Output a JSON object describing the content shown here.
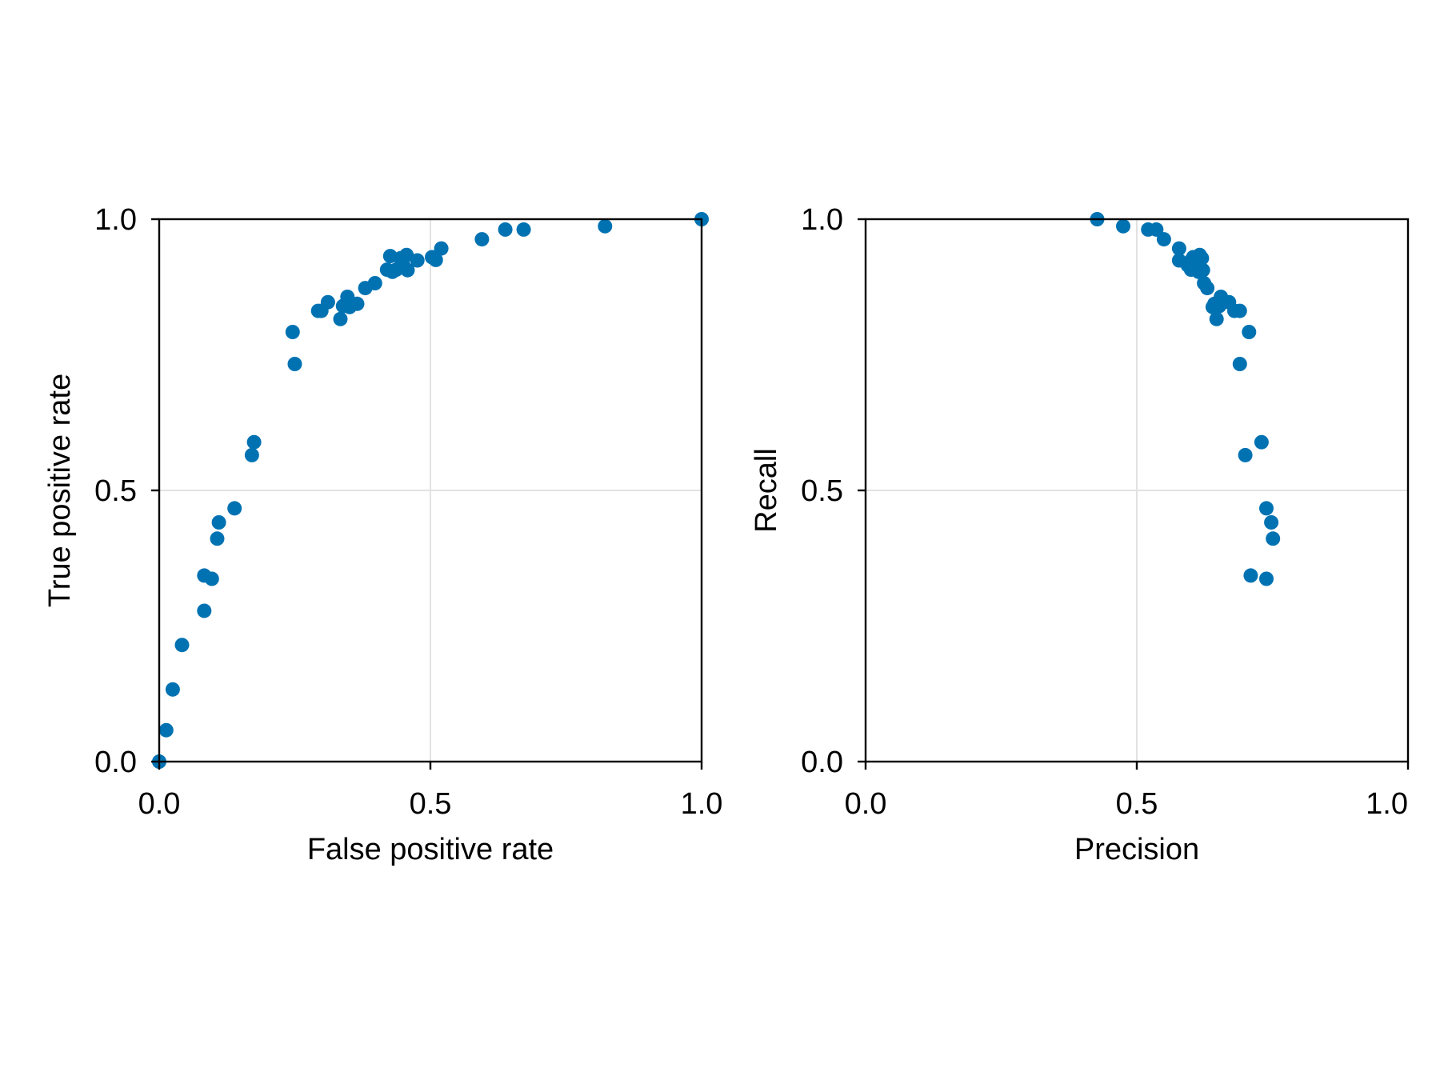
{
  "chart_data": [
    {
      "type": "scatter",
      "title": "",
      "xlabel": "False positive rate",
      "ylabel": "True positive rate",
      "xlim": [
        0,
        1
      ],
      "ylim": [
        0,
        1
      ],
      "xticks": [
        "0.0",
        "0.5",
        "1.0"
      ],
      "yticks": [
        "0.0",
        "0.5",
        "1.0"
      ],
      "grid": true,
      "legend": "none",
      "marker_color": "#0072b2",
      "points": [
        [
          0.0,
          0.0
        ],
        [
          0.013,
          0.058
        ],
        [
          0.025,
          0.133
        ],
        [
          0.042,
          0.215
        ],
        [
          0.083,
          0.278
        ],
        [
          0.083,
          0.343
        ],
        [
          0.097,
          0.337
        ],
        [
          0.107,
          0.411
        ],
        [
          0.11,
          0.441
        ],
        [
          0.139,
          0.467
        ],
        [
          0.171,
          0.565
        ],
        [
          0.175,
          0.589
        ],
        [
          0.246,
          0.792
        ],
        [
          0.25,
          0.733
        ],
        [
          0.293,
          0.831
        ],
        [
          0.299,
          0.831
        ],
        [
          0.311,
          0.847
        ],
        [
          0.334,
          0.816
        ],
        [
          0.339,
          0.84
        ],
        [
          0.347,
          0.857
        ],
        [
          0.351,
          0.838
        ],
        [
          0.365,
          0.844
        ],
        [
          0.38,
          0.873
        ],
        [
          0.398,
          0.882
        ],
        [
          0.42,
          0.907
        ],
        [
          0.426,
          0.932
        ],
        [
          0.43,
          0.903
        ],
        [
          0.437,
          0.907
        ],
        [
          0.445,
          0.928
        ],
        [
          0.45,
          0.915
        ],
        [
          0.456,
          0.934
        ],
        [
          0.458,
          0.906
        ],
        [
          0.476,
          0.924
        ],
        [
          0.503,
          0.93
        ],
        [
          0.51,
          0.925
        ],
        [
          0.52,
          0.946
        ],
        [
          0.595,
          0.963
        ],
        [
          0.638,
          0.981
        ],
        [
          0.672,
          0.981
        ],
        [
          0.822,
          0.987
        ],
        [
          1.0,
          1.0
        ]
      ]
    },
    {
      "type": "scatter",
      "title": "",
      "xlabel": "Precision",
      "ylabel": "Recall",
      "xlim": [
        0,
        1
      ],
      "ylim": [
        0,
        1
      ],
      "xticks": [
        "0.0",
        "0.5",
        "1.0"
      ],
      "yticks": [
        "0.0",
        "0.5",
        "1.0"
      ],
      "grid": true,
      "legend": "none",
      "marker_color": "#0072b2",
      "points": [
        [
          0.427,
          1.0
        ],
        [
          0.475,
          0.987
        ],
        [
          0.521,
          0.981
        ],
        [
          0.536,
          0.981
        ],
        [
          0.55,
          0.963
        ],
        [
          0.578,
          0.924
        ],
        [
          0.578,
          0.946
        ],
        [
          0.594,
          0.915
        ],
        [
          0.6,
          0.907
        ],
        [
          0.601,
          0.925
        ],
        [
          0.604,
          0.93
        ],
        [
          0.61,
          0.907
        ],
        [
          0.614,
          0.903
        ],
        [
          0.616,
          0.934
        ],
        [
          0.62,
          0.928
        ],
        [
          0.622,
          0.906
        ],
        [
          0.624,
          0.882
        ],
        [
          0.63,
          0.873
        ],
        [
          0.64,
          0.838
        ],
        [
          0.643,
          0.844
        ],
        [
          0.647,
          0.816
        ],
        [
          0.652,
          0.84
        ],
        [
          0.655,
          0.857
        ],
        [
          0.67,
          0.847
        ],
        [
          0.68,
          0.831
        ],
        [
          0.69,
          0.831
        ],
        [
          0.69,
          0.733
        ],
        [
          0.707,
          0.792
        ],
        [
          0.7,
          0.565
        ],
        [
          0.71,
          0.343
        ],
        [
          0.73,
          0.589
        ],
        [
          0.739,
          0.467
        ],
        [
          0.739,
          0.337
        ],
        [
          0.748,
          0.441
        ],
        [
          0.751,
          0.411
        ]
      ]
    }
  ]
}
